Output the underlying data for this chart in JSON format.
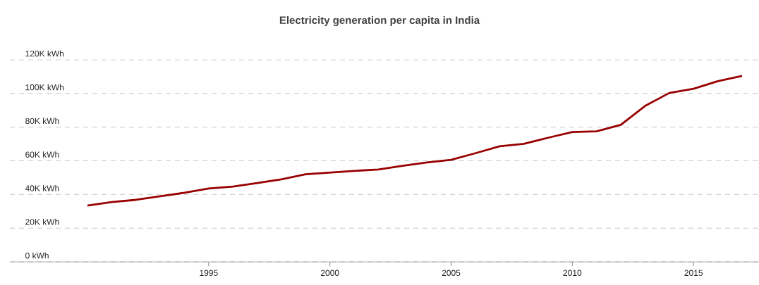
{
  "chart_data": {
    "type": "line",
    "title": "Electricity generation per capita in India",
    "x": [
      1990,
      1991,
      1992,
      1993,
      1994,
      1995,
      1996,
      1997,
      1998,
      1999,
      2000,
      2001,
      2002,
      2003,
      2004,
      2005,
      2006,
      2007,
      2008,
      2009,
      2010,
      2011,
      2012,
      2013,
      2014,
      2015,
      2016,
      2017
    ],
    "values": [
      33400,
      35500,
      36800,
      38900,
      41000,
      43500,
      44700,
      46800,
      49000,
      52000,
      53000,
      54000,
      54800,
      57000,
      59000,
      60600,
      64500,
      68600,
      70100,
      73700,
      77100,
      77500,
      81400,
      92600,
      100300,
      102800,
      107300,
      110400
    ],
    "color": "#990000",
    "xlim": [
      1986.8,
      2017.7
    ],
    "ylim": [
      0,
      120000
    ],
    "xticks": [
      1995,
      2000,
      2005,
      2010,
      2015
    ],
    "yticks": [
      {
        "value": 0,
        "label": "0 kWh"
      },
      {
        "value": 20000,
        "label": "20K kWh"
      },
      {
        "value": 40000,
        "label": "40K kWh"
      },
      {
        "value": 60000,
        "label": "60K kWh"
      },
      {
        "value": 80000,
        "label": "80K kWh"
      },
      {
        "value": 100000,
        "label": "100K kWh"
      },
      {
        "value": 120000,
        "label": "120K kWh"
      }
    ],
    "grid": "y"
  }
}
